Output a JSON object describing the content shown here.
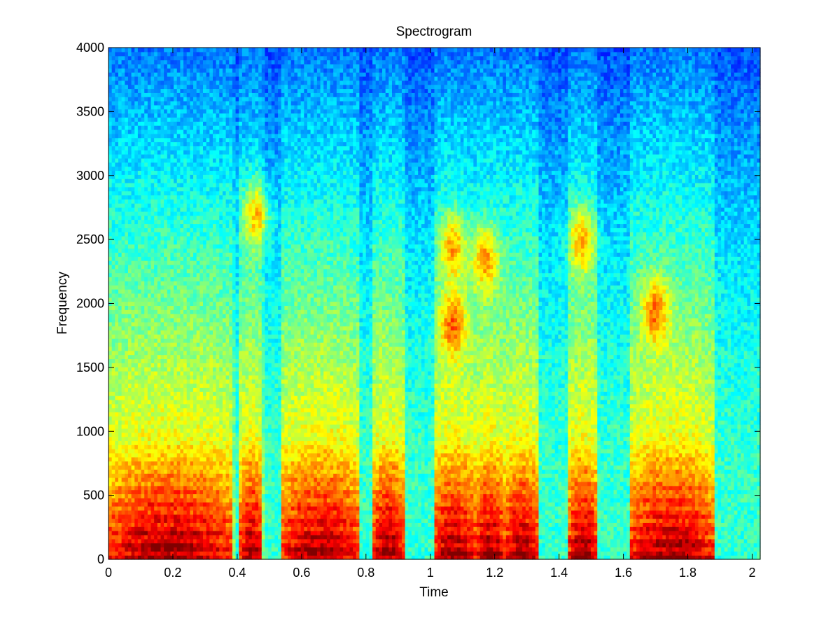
{
  "chart_data": {
    "type": "heatmap",
    "title": "Spectrogram",
    "xlabel": "Time",
    "ylabel": "Frequency",
    "xlim": [
      0,
      2.025
    ],
    "ylim": [
      0,
      4000
    ],
    "x_ticks": [
      0,
      0.2,
      0.4,
      0.6,
      0.8,
      1,
      1.2,
      1.4,
      1.6,
      1.8,
      2
    ],
    "x_tick_labels": [
      "0",
      "0.2",
      "0.4",
      "0.6",
      "0.8",
      "1",
      "1.2",
      "1.4",
      "1.6",
      "1.8",
      "2"
    ],
    "y_ticks": [
      0,
      500,
      1000,
      1500,
      2000,
      2500,
      3000,
      3500,
      4000
    ],
    "y_tick_labels": [
      "0",
      "500",
      "1000",
      "1500",
      "2000",
      "2500",
      "3000",
      "3500",
      "4000"
    ],
    "grid": false,
    "colormap": "jet",
    "grid_resolution": {
      "time_bins": 200,
      "freq_bins": 125
    },
    "segments": [
      {
        "t0": 0.0,
        "t1": 0.38,
        "label": "voiced"
      },
      {
        "t0": 0.39,
        "t1": 0.41,
        "label": "pause"
      },
      {
        "t0": 0.41,
        "t1": 0.48,
        "label": "voiced"
      },
      {
        "t0": 0.49,
        "t1": 0.54,
        "label": "pause"
      },
      {
        "t0": 0.54,
        "t1": 0.78,
        "label": "voiced"
      },
      {
        "t0": 0.78,
        "t1": 0.82,
        "label": "pause"
      },
      {
        "t0": 0.82,
        "t1": 0.92,
        "label": "voiced"
      },
      {
        "t0": 0.92,
        "t1": 1.01,
        "label": "pause"
      },
      {
        "t0": 1.01,
        "t1": 1.14,
        "label": "voiced"
      },
      {
        "t0": 1.14,
        "t1": 1.23,
        "label": "voiced"
      },
      {
        "t0": 1.23,
        "t1": 1.34,
        "label": "voiced"
      },
      {
        "t0": 1.34,
        "t1": 1.43,
        "label": "pause"
      },
      {
        "t0": 1.43,
        "t1": 1.52,
        "label": "voiced"
      },
      {
        "t0": 1.52,
        "t1": 1.62,
        "label": "pause"
      },
      {
        "t0": 1.62,
        "t1": 1.88,
        "label": "voiced"
      },
      {
        "t0": 1.88,
        "t1": 2.025,
        "label": "pause"
      }
    ],
    "formant_peaks": [
      {
        "t": 1.07,
        "f": 1850,
        "level": "high"
      },
      {
        "t": 1.07,
        "f": 2450,
        "level": "high"
      },
      {
        "t": 1.17,
        "f": 2350,
        "level": "high"
      },
      {
        "t": 0.46,
        "f": 2700,
        "level": "high"
      },
      {
        "t": 1.47,
        "f": 2500,
        "level": "high"
      },
      {
        "t": 1.7,
        "f": 1950,
        "level": "high"
      }
    ]
  }
}
